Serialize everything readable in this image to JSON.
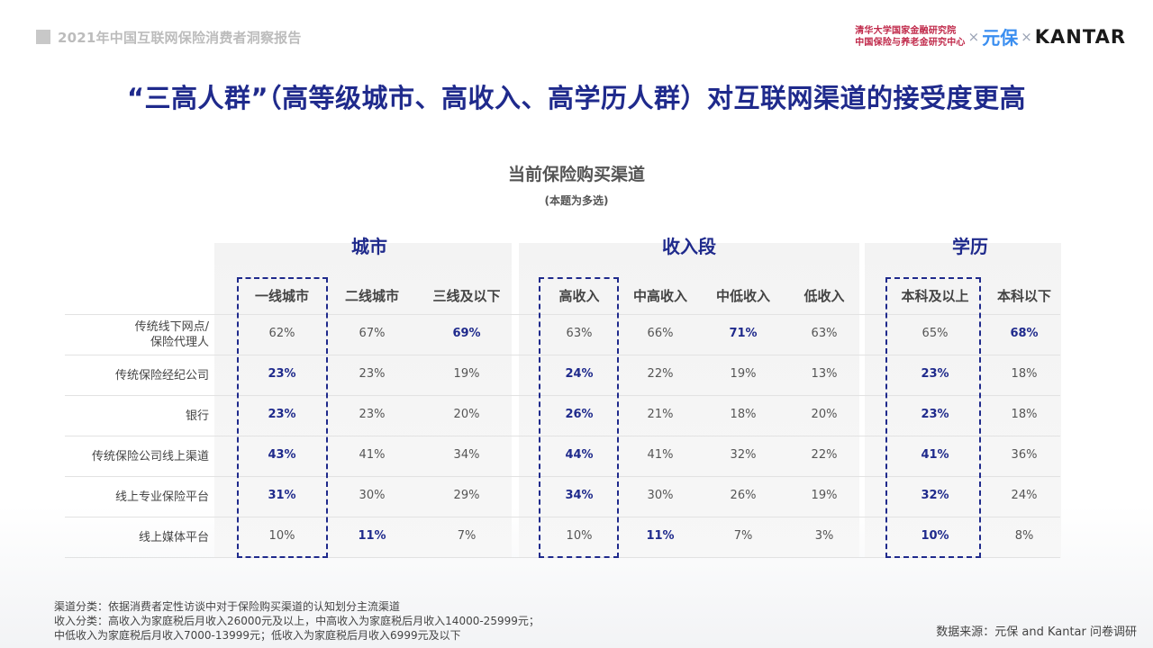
{
  "header": {
    "report_title": "2021年中国互联网保险消费者洞察报告",
    "logo_tsinghua_line1": "清华大学国家金融研究院",
    "logo_tsinghua_line2": "中国保险与养老金研究中心",
    "logo_sep": "×",
    "logo_yuanbao": "元保",
    "logo_kantar": "KANTAR"
  },
  "main_title": "“三高人群”（高等级城市、高收入、高学历人群）对互联网渠道的接受度更高",
  "chart_data": {
    "type": "table",
    "title": "当前保险购买渠道",
    "subtitle": "(本题为多选)",
    "groups": [
      {
        "name": "城市",
        "columns": [
          "一线城市",
          "二线城市",
          "三线及以下"
        ]
      },
      {
        "name": "收入段",
        "columns": [
          "高收入",
          "中高收入",
          "中低收入",
          "低收入"
        ]
      },
      {
        "name": "学历",
        "columns": [
          "本科及以上",
          "本科以下"
        ]
      }
    ],
    "rows": [
      {
        "label": "传统线下网点/\n保险代理人",
        "values": [
          "62%",
          "67%",
          "69%",
          "63%",
          "66%",
          "71%",
          "63%",
          "65%",
          "68%"
        ],
        "highlight": [
          2,
          5,
          8
        ]
      },
      {
        "label": "传统保险经纪公司",
        "values": [
          "23%",
          "23%",
          "19%",
          "24%",
          "22%",
          "19%",
          "13%",
          "23%",
          "18%"
        ],
        "highlight": [
          0,
          3,
          7
        ]
      },
      {
        "label": "银行",
        "values": [
          "23%",
          "23%",
          "20%",
          "26%",
          "21%",
          "18%",
          "20%",
          "23%",
          "18%"
        ],
        "highlight": [
          0,
          3,
          7
        ]
      },
      {
        "label": "传统保险公司线上渠道",
        "values": [
          "43%",
          "41%",
          "34%",
          "44%",
          "41%",
          "32%",
          "22%",
          "41%",
          "36%"
        ],
        "highlight": [
          0,
          3,
          7
        ]
      },
      {
        "label": "线上专业保险平台",
        "values": [
          "31%",
          "30%",
          "29%",
          "34%",
          "30%",
          "26%",
          "19%",
          "32%",
          "24%"
        ],
        "highlight": [
          0,
          3,
          7
        ]
      },
      {
        "label": "线上媒体平台",
        "values": [
          "10%",
          "11%",
          "7%",
          "10%",
          "11%",
          "7%",
          "3%",
          "10%",
          "8%"
        ],
        "highlight": [
          1,
          4,
          7
        ]
      }
    ],
    "highlight_color": "#1f2a8c"
  },
  "footnotes": [
    "渠道分类：依据消费者定性访谈中对于保险购买渠道的认知划分主流渠道",
    "收入分类：高收入为家庭税后月收入26000元及以上，中高收入为家庭税后月收入14000-25999元；",
    "中低收入为家庭税后月收入7000-13999元；低收入为家庭税后月收入6999元及以下"
  ],
  "source": "数据来源：元保 and Kantar 问卷调研"
}
